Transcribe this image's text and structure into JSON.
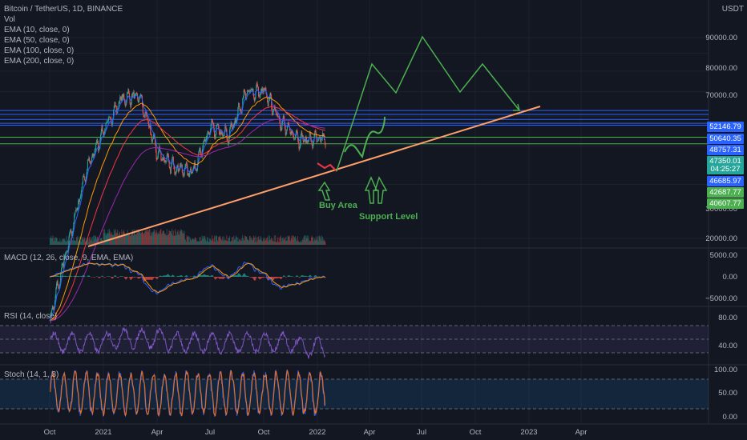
{
  "legend": {
    "symbol": "Bitcoin / TetherUS, 1D, BINANCE",
    "vol": "Vol",
    "ema": [
      "EMA (10, close, 0)",
      "EMA (50, close, 0)",
      "EMA (100, close, 0)",
      "EMA (200, close, 0)"
    ]
  },
  "currency": "USDT",
  "price_axis": [
    "90000.00",
    "80000.00",
    "70000.00",
    "30000.00",
    "20000.00"
  ],
  "price_badges": [
    {
      "text": "52146.79",
      "color": "#2962ff"
    },
    {
      "text": "50640.35",
      "color": "#2962ff"
    },
    {
      "text": "48757.31",
      "color": "#2962ff"
    },
    {
      "text": "47350.01",
      "color": "#26a69a"
    },
    {
      "text": "04:25:27",
      "color": "#26a69a"
    },
    {
      "text": "46685.97",
      "color": "#2962ff"
    },
    {
      "text": "42687.77",
      "color": "#4caf50"
    },
    {
      "text": "40607.77",
      "color": "#4caf50"
    }
  ],
  "panes": {
    "macd": {
      "label": "MACD (12, 26, close, 9, EMA, EMA)",
      "ticks": [
        "5000.00",
        "0.00",
        "−5000.00"
      ]
    },
    "rsi": {
      "label": "RSI (14, close)",
      "ticks": [
        "80.00",
        "40.00"
      ]
    },
    "stoch": {
      "label": "Stoch (14, 1, 3)",
      "ticks": [
        "100.00",
        "50.00",
        "0.00"
      ]
    }
  },
  "x_axis": [
    "Oct",
    "2021",
    "Apr",
    "Jul",
    "Oct",
    "2022",
    "Apr",
    "Jul",
    "Oct",
    "2023",
    "Apr"
  ],
  "annotations": {
    "buy_area": "Buy Area",
    "support_level": "Support Level"
  },
  "chart_data": {
    "type": "line",
    "title": "Bitcoin / TetherUS, 1D, BINANCE",
    "ylim": [
      17000,
      100000
    ],
    "y_scale": "log",
    "x": [
      "2020-10",
      "2020-12",
      "2021-01",
      "2021-02",
      "2021-03",
      "2021-04",
      "2021-05",
      "2021-06",
      "2021-07",
      "2021-08",
      "2021-09",
      "2021-10",
      "2021-11",
      "2021-12",
      "2022-01"
    ],
    "series": [
      {
        "values": [
          11000,
          19000,
          33000,
          45000,
          57000,
          58000,
          38000,
          34000,
          33000,
          46000,
          43000,
          60000,
          60000,
          47000,
          42000
        ]
      }
    ],
    "horizontal_levels": [
      52146.79,
      50640.35,
      48757.31,
      47350.01,
      46685.97,
      42687.77,
      40607.77
    ],
    "grid": true,
    "legend": "top-left"
  },
  "colors": {
    "up": "#26a69a",
    "down": "#ef5350",
    "ema10": "#2962ff",
    "ema50": "#ff9800",
    "ema100": "#f23645",
    "ema200": "#9c27b0",
    "drawing": "#4caf50",
    "trendline": "#ff9f6a"
  }
}
